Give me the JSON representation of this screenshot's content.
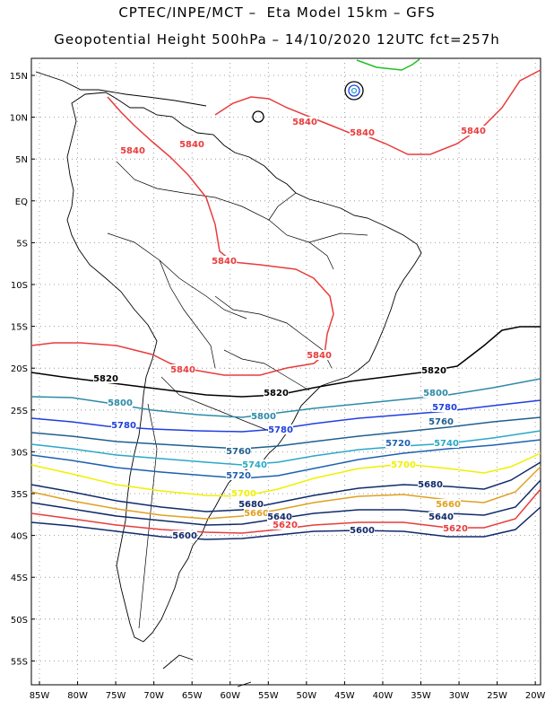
{
  "header": {
    "line1": "CPTEC/INPE/MCT –  Eta Model 15km – GFS",
    "line2": "Geopotential Height 500hPa – 14/10/2020 12UTC fct=257h"
  },
  "map": {
    "lat_labels": [
      "15N",
      "10N",
      "5N",
      "EQ",
      "5S",
      "10S",
      "15S",
      "20S",
      "25S",
      "30S",
      "35S",
      "40S",
      "45S",
      "50S",
      "55S"
    ],
    "lon_labels": [
      "85W",
      "80W",
      "75W",
      "70W",
      "65W",
      "60W",
      "55W",
      "50W",
      "45W",
      "40W",
      "35W",
      "30W",
      "25W",
      "20W"
    ]
  },
  "contours": [
    {
      "value": "5840",
      "color": "#e83c3c"
    },
    {
      "value": "5820",
      "color": "#000000"
    },
    {
      "value": "5800",
      "color": "#2e8aa8"
    },
    {
      "value": "5780",
      "color": "#1f3fe0"
    },
    {
      "value": "5760",
      "color": "#1f5f8f"
    },
    {
      "value": "5740",
      "color": "#2aa8c8"
    },
    {
      "value": "5720",
      "color": "#1e60b0"
    },
    {
      "value": "5700",
      "color": "#f0f000"
    },
    {
      "value": "5680",
      "color": "#102a6a"
    },
    {
      "value": "5660",
      "color": "#e0a020"
    },
    {
      "value": "5640",
      "color": "#102a6a"
    },
    {
      "value": "5620",
      "color": "#e83c3c"
    },
    {
      "value": "5600",
      "color": "#102a6a"
    }
  ],
  "green_contour_color": "#22c022"
}
